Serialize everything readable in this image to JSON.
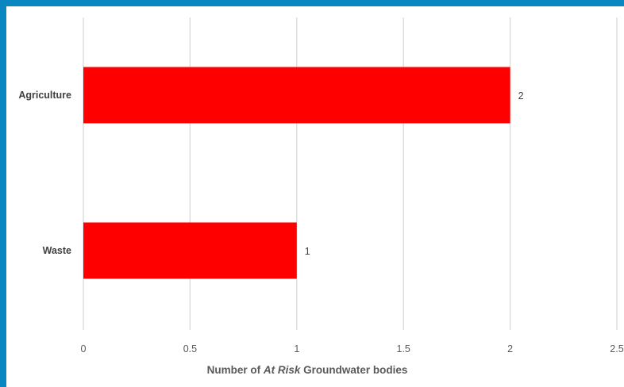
{
  "chart_data": {
    "type": "bar",
    "orientation": "horizontal",
    "categories": [
      "Agriculture",
      "Waste"
    ],
    "values": [
      2,
      1
    ],
    "data_labels": [
      "2",
      "1"
    ],
    "xlabel_parts": [
      {
        "text": "Number of ",
        "italic": false
      },
      {
        "text": "At Risk",
        "italic": true
      },
      {
        "text": "  Groundwater bodies",
        "italic": false
      }
    ],
    "xlim": [
      0,
      2.5
    ],
    "xticks": [
      "0",
      "0.5",
      "1",
      "1.5",
      "2",
      "2.5"
    ],
    "grid": true,
    "legend": "none",
    "colors": {
      "bar": "#ff0000",
      "frame": "#0a86c0"
    }
  }
}
